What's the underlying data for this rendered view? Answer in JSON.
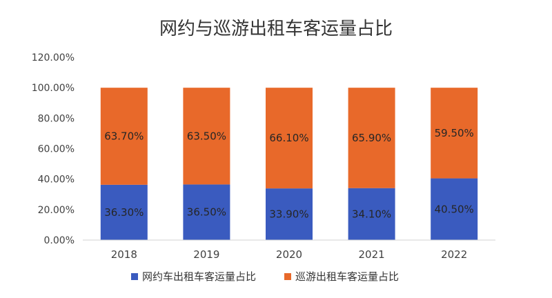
{
  "chart_data": {
    "type": "bar",
    "stacked": true,
    "title": "网约与巡游出租车客运量占比",
    "categories": [
      "2018",
      "2019",
      "2020",
      "2021",
      "2022"
    ],
    "series": [
      {
        "name": "网约车出租车客运量占比",
        "values": [
          36.3,
          36.5,
          33.9,
          34.1,
          40.5
        ],
        "labels": [
          "36.30%",
          "36.50%",
          "33.90%",
          "34.10%",
          "40.50%"
        ],
        "color": "#3A5BBF"
      },
      {
        "name": "巡游出租车客运量占比",
        "values": [
          63.7,
          63.5,
          66.1,
          65.9,
          59.5
        ],
        "labels": [
          "63.70%",
          "63.50%",
          "66.10%",
          "65.90%",
          "59.50%"
        ],
        "color": "#E8692A"
      }
    ],
    "yticks": [
      "0.00%",
      "20.00%",
      "40.00%",
      "60.00%",
      "80.00%",
      "100.00%",
      "120.00%"
    ],
    "ylim": [
      0,
      120
    ],
    "grid": false,
    "legend": "bottom"
  }
}
